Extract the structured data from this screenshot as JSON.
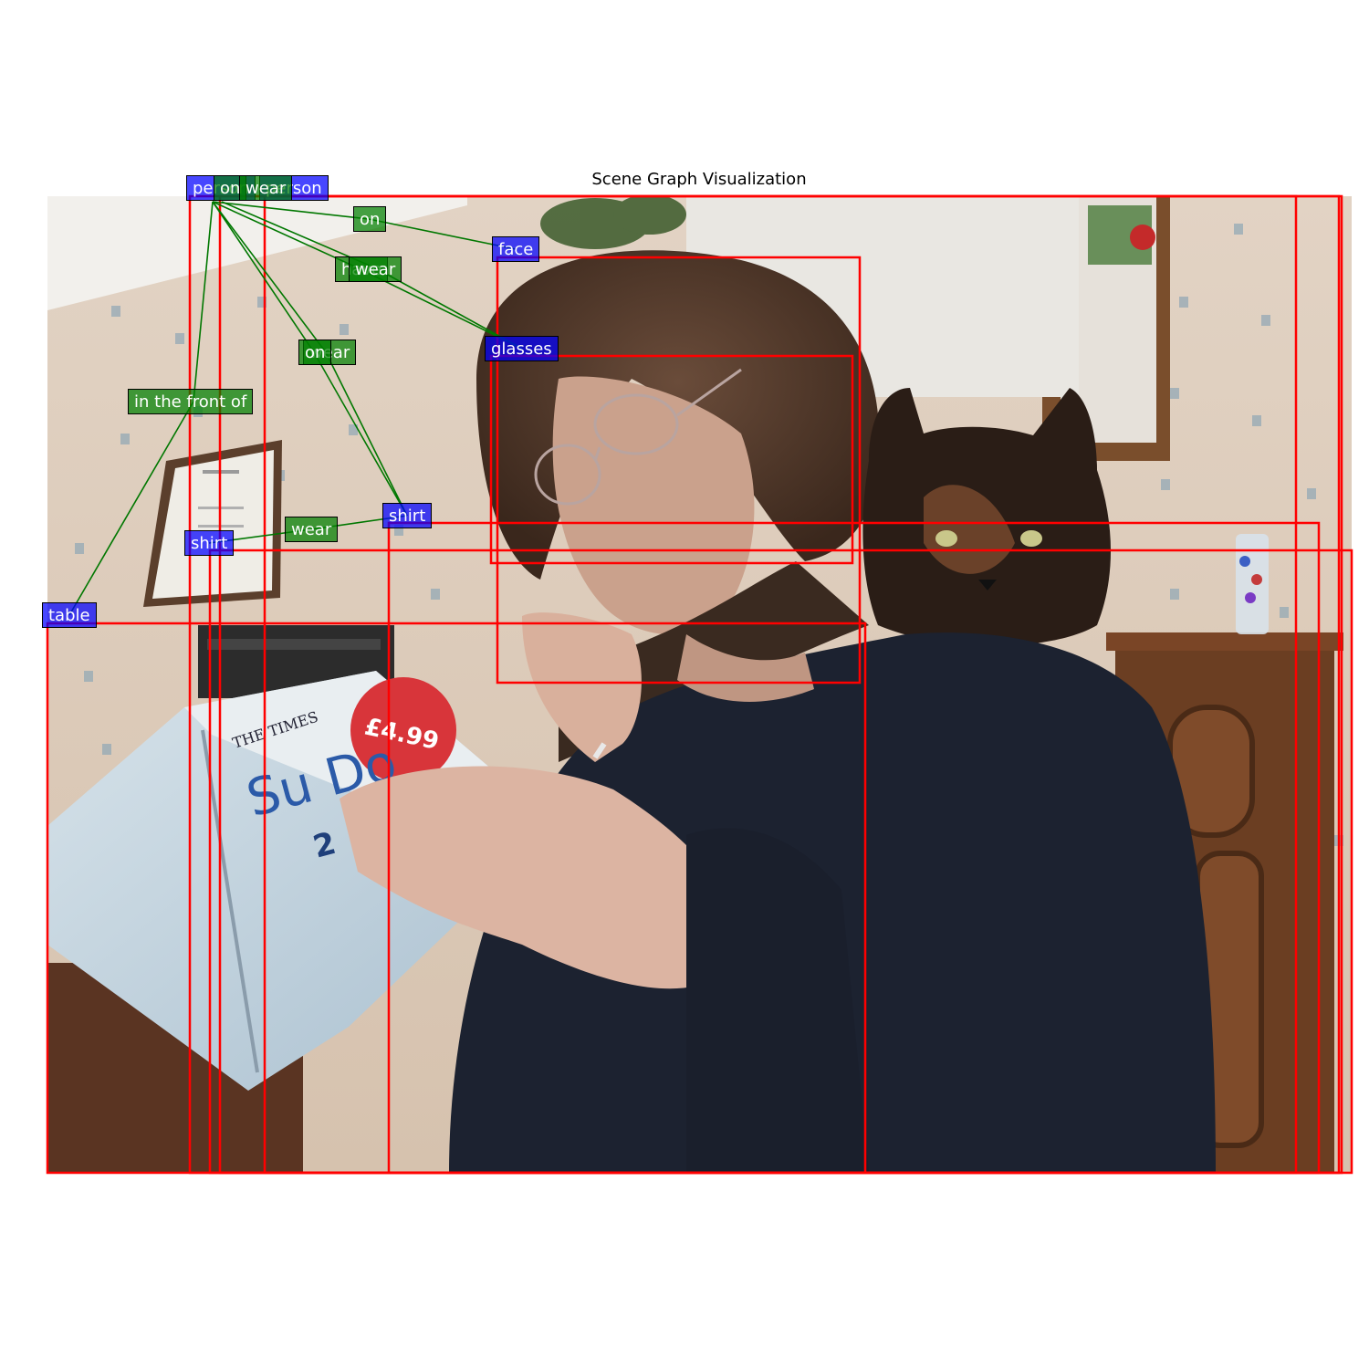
{
  "title": "Scene Graph Visualization",
  "colors": {
    "box": "#ff0000",
    "edge": "#007700",
    "object_label_bg": "#0000ff",
    "relation_label_bg": "#008000"
  },
  "objects": [
    {
      "label": "person"
    },
    {
      "label": "person"
    },
    {
      "label": "face"
    },
    {
      "label": "glasses"
    },
    {
      "label": "shirt"
    },
    {
      "label": "shirt"
    },
    {
      "label": "table"
    }
  ],
  "relations": [
    {
      "label": "on"
    },
    {
      "label": "wear"
    },
    {
      "label": "on"
    },
    {
      "label": "have"
    },
    {
      "label": "wear"
    },
    {
      "label": "on"
    },
    {
      "label": "wear"
    },
    {
      "label": "in the front of"
    },
    {
      "label": "wear"
    }
  ],
  "photo": {
    "scene": "woman-reading-sudoku-book-with-cat",
    "book_cover": {
      "masthead": "THE TIMES",
      "title": "Su Do",
      "price": "£4.99",
      "number": "2"
    }
  }
}
